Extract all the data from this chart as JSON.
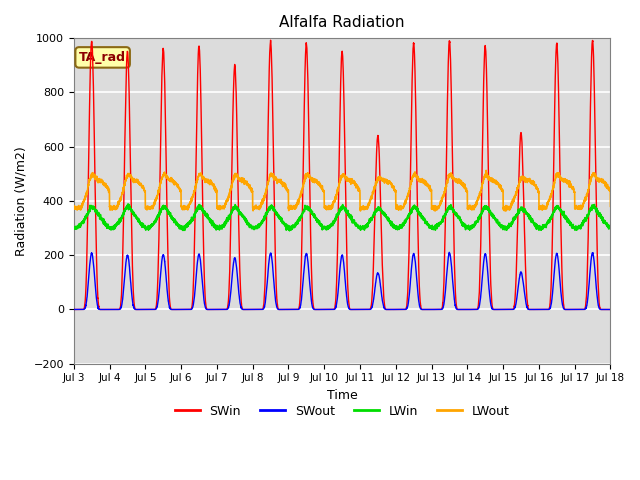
{
  "title": "Alfalfa Radiation",
  "xlabel": "Time",
  "ylabel": "Radiation (W/m2)",
  "ylim": [
    -200,
    1000
  ],
  "x_tick_labels": [
    "Jul 3",
    "Jul 4",
    "Jul 5",
    "Jul 6",
    "Jul 7",
    "Jul 8",
    "Jul 9",
    "Jul 10",
    "Jul 11",
    "Jul 12",
    "Jul 13",
    "Jul 14",
    "Jul 15",
    "Jul 16",
    "Jul 17",
    "Jul 18"
  ],
  "annotation": "TA_rad",
  "colors": {
    "SWin": "#FF0000",
    "SWout": "#0000FF",
    "LWin": "#00DD00",
    "LWout": "#FFA500"
  },
  "background_color": "#DCDCDC",
  "yticks": [
    -200,
    0,
    200,
    400,
    600,
    800,
    1000
  ],
  "n_days": 15,
  "pts_per_day": 288,
  "SWin_peaks": [
    990,
    950,
    960,
    970,
    900,
    985,
    980,
    950,
    640,
    980,
    990,
    970,
    650,
    980,
    990
  ],
  "LWout_night": 375,
  "LWout_day_boost": 100,
  "LWin_base": 330,
  "LWin_amplitude": 30,
  "SWout_ratio": 0.21
}
